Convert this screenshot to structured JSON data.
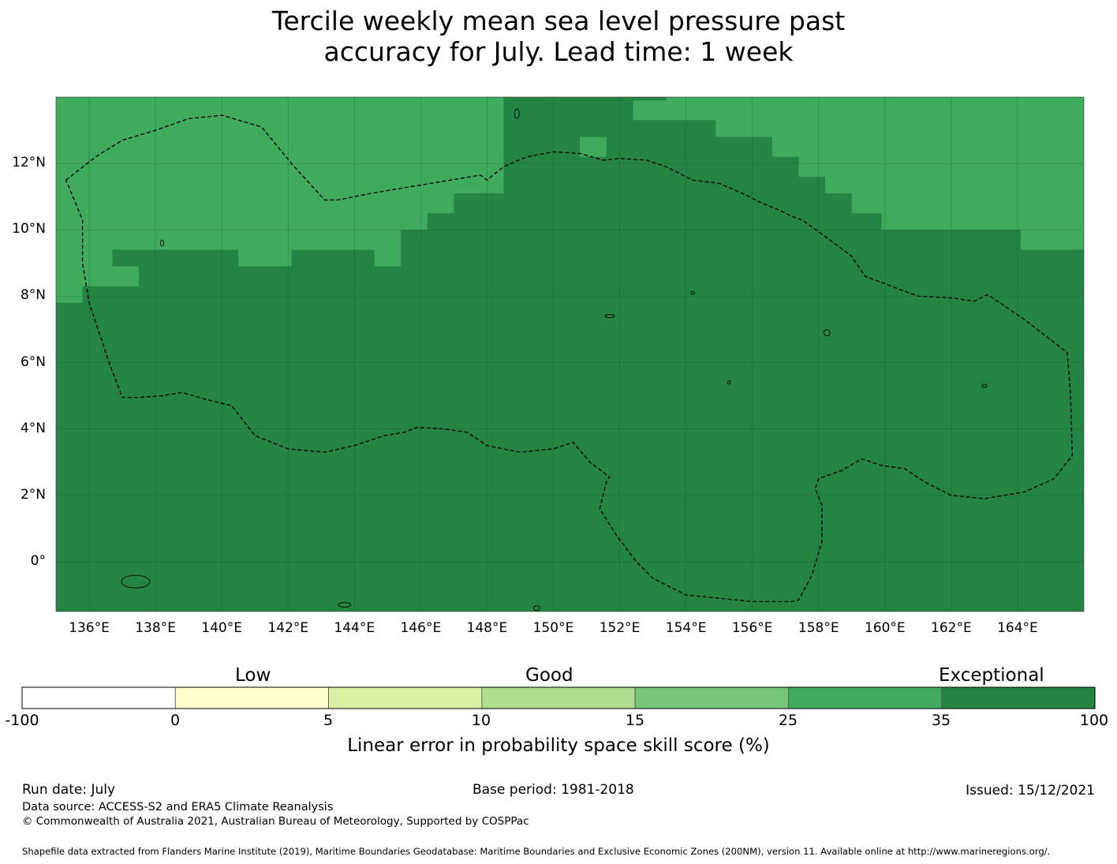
{
  "title_line1": "Tercile weekly mean sea level pressure past",
  "title_line2": "accuracy for July. Lead time: 1 week",
  "map": {
    "extent": {
      "lon_min": 135.0,
      "lon_max": 166.0,
      "lat_min": -1.5,
      "lat_max": 14.0
    },
    "lon_labels": [
      "136°E",
      "138°E",
      "140°E",
      "142°E",
      "144°E",
      "146°E",
      "148°E",
      "150°E",
      "152°E",
      "154°E",
      "156°E",
      "158°E",
      "160°E",
      "162°E",
      "164°E"
    ],
    "lat_labels": [
      "12°N",
      "10°N",
      "8°N",
      "6°N",
      "4°N",
      "2°N",
      "0°"
    ],
    "colors": {
      "score_25_35": "#41ab5d",
      "score_35_100": "#238443",
      "grid": "#1e5a32"
    },
    "category_25_35_regions_lon_lat": [
      [
        [
          135.0,
          14.0
        ],
        [
          148.5,
          14.0
        ],
        [
          148.5,
          11.1
        ],
        [
          147.0,
          11.1
        ],
        [
          147.0,
          10.5
        ],
        [
          146.2,
          10.5
        ],
        [
          146.2,
          10.0
        ],
        [
          145.4,
          10.0
        ],
        [
          145.4,
          8.9
        ],
        [
          144.6,
          8.9
        ],
        [
          144.6,
          9.4
        ],
        [
          142.1,
          9.4
        ],
        [
          142.1,
          8.9
        ],
        [
          140.5,
          8.9
        ],
        [
          140.5,
          9.4
        ],
        [
          136.7,
          9.4
        ],
        [
          136.7,
          8.9
        ],
        [
          137.5,
          8.9
        ],
        [
          137.5,
          8.3
        ],
        [
          135.8,
          8.3
        ],
        [
          135.8,
          7.8
        ],
        [
          135.0,
          7.8
        ]
      ],
      [
        [
          152.4,
          14.0
        ],
        [
          166.0,
          14.0
        ],
        [
          166.0,
          9.4
        ],
        [
          164.1,
          9.4
        ],
        [
          164.1,
          10.0
        ],
        [
          159.9,
          10.0
        ],
        [
          159.9,
          10.5
        ],
        [
          159.0,
          10.5
        ],
        [
          159.0,
          11.1
        ],
        [
          158.2,
          11.1
        ],
        [
          158.2,
          11.6
        ],
        [
          157.4,
          11.6
        ],
        [
          157.4,
          12.2
        ],
        [
          156.6,
          12.2
        ],
        [
          156.6,
          12.8
        ],
        [
          154.9,
          12.8
        ],
        [
          154.9,
          13.3
        ],
        [
          152.4,
          13.3
        ]
      ]
    ],
    "category_35_100_patch_lon_lat": [
      [
        148.5,
        14.0
      ],
      [
        153.4,
        14.0
      ],
      [
        153.4,
        13.9
      ],
      [
        148.5,
        13.9
      ]
    ],
    "category_25_35_small_patch_lon_lat": [
      [
        150.8,
        12.8
      ],
      [
        151.6,
        12.8
      ],
      [
        151.6,
        12.2
      ],
      [
        150.8,
        12.2
      ]
    ],
    "eez_boundary_lon_lat": [
      [
        135.3,
        11.5
      ],
      [
        136.2,
        12.2
      ],
      [
        137.0,
        12.7
      ],
      [
        138.0,
        13.0
      ],
      [
        139.0,
        13.35
      ],
      [
        140.0,
        13.45
      ],
      [
        141.2,
        13.1
      ],
      [
        142.1,
        12.0
      ],
      [
        143.1,
        10.9
      ],
      [
        143.5,
        10.9
      ],
      [
        144.5,
        11.1
      ],
      [
        146.0,
        11.35
      ],
      [
        147.2,
        11.55
      ],
      [
        147.8,
        11.65
      ],
      [
        148.0,
        11.5
      ],
      [
        148.5,
        11.9
      ],
      [
        149.2,
        12.2
      ],
      [
        150.0,
        12.35
      ],
      [
        150.8,
        12.3
      ],
      [
        151.5,
        12.1
      ],
      [
        152.0,
        12.15
      ],
      [
        152.8,
        12.1
      ],
      [
        153.4,
        11.9
      ],
      [
        154.2,
        11.5
      ],
      [
        155.0,
        11.4
      ],
      [
        155.7,
        11.1
      ],
      [
        156.3,
        10.8
      ],
      [
        156.8,
        10.6
      ],
      [
        157.2,
        10.4
      ],
      [
        157.5,
        10.3
      ],
      [
        158.2,
        9.8
      ],
      [
        159.0,
        9.2
      ],
      [
        159.4,
        8.6
      ],
      [
        160.2,
        8.3
      ],
      [
        161.0,
        8.0
      ],
      [
        162.0,
        7.95
      ],
      [
        162.7,
        7.85
      ],
      [
        163.1,
        8.05
      ],
      [
        164.2,
        7.3
      ],
      [
        165.5,
        6.3
      ],
      [
        165.6,
        5.0
      ],
      [
        165.65,
        3.2
      ],
      [
        165.1,
        2.5
      ],
      [
        164.2,
        2.1
      ],
      [
        163.0,
        1.9
      ],
      [
        162.0,
        2.0
      ],
      [
        161.2,
        2.4
      ],
      [
        160.6,
        2.8
      ],
      [
        159.9,
        2.9
      ],
      [
        159.3,
        3.1
      ],
      [
        158.7,
        2.75
      ],
      [
        158.0,
        2.5
      ],
      [
        157.9,
        2.2
      ],
      [
        158.1,
        1.7
      ],
      [
        158.1,
        0.6
      ],
      [
        157.8,
        -0.4
      ],
      [
        157.4,
        -1.15
      ],
      [
        157.2,
        -1.2
      ],
      [
        156.0,
        -1.2
      ],
      [
        154.0,
        -1.0
      ],
      [
        153.0,
        -0.5
      ],
      [
        152.5,
        0.0
      ],
      [
        151.9,
        0.8
      ],
      [
        151.4,
        1.6
      ],
      [
        151.6,
        2.4
      ],
      [
        151.7,
        2.55
      ],
      [
        151.1,
        3.0
      ],
      [
        150.6,
        3.6
      ],
      [
        150.0,
        3.4
      ],
      [
        149.0,
        3.3
      ],
      [
        148.0,
        3.5
      ],
      [
        147.4,
        3.9
      ],
      [
        146.7,
        4.0
      ],
      [
        145.9,
        4.05
      ],
      [
        145.5,
        3.9
      ],
      [
        144.9,
        3.8
      ],
      [
        144.0,
        3.5
      ],
      [
        143.1,
        3.3
      ],
      [
        142.0,
        3.4
      ],
      [
        141.0,
        3.8
      ],
      [
        140.3,
        4.7
      ],
      [
        139.5,
        4.9
      ],
      [
        138.8,
        5.1
      ],
      [
        138.2,
        5.0
      ],
      [
        137.5,
        4.95
      ],
      [
        137.0,
        4.95
      ],
      [
        136.6,
        6.0
      ],
      [
        136.0,
        7.8
      ],
      [
        135.8,
        9.0
      ],
      [
        135.8,
        10.3
      ],
      [
        135.3,
        11.5
      ]
    ]
  },
  "colorbar": {
    "categories": [
      "Low",
      "Good",
      "Exceptional"
    ],
    "bins": [
      {
        "from": -100,
        "to": 0,
        "color": "#ffffff"
      },
      {
        "from": 0,
        "to": 5,
        "color": "#ffffcc"
      },
      {
        "from": 5,
        "to": 10,
        "color": "#d9f0a3"
      },
      {
        "from": 10,
        "to": 15,
        "color": "#addd8e"
      },
      {
        "from": 15,
        "to": 25,
        "color": "#78c679"
      },
      {
        "from": 25,
        "to": 35,
        "color": "#41ab5d"
      },
      {
        "from": 35,
        "to": 100,
        "color": "#238443"
      }
    ],
    "tick_labels": [
      "-100",
      "0",
      "5",
      "10",
      "15",
      "25",
      "35",
      "100"
    ],
    "label": "Linear error in probability space skill score (%)"
  },
  "footer": {
    "run_date": "Run date: July",
    "base_period": "Base period: 1981-2018",
    "issued": "Issued: 15/12/2021",
    "data_source": "Data source: ACCESS-S2 and ERA5 Climate Reanalysis",
    "copyright": "© Commonwealth of Australia 2021, Australian Bureau of Meteorology, Supported by COSPPac",
    "shapefile": "Shapefile data extracted from Flanders Marine Institute (2019), Maritime Boundaries Geodatabase: Maritime Boundaries and Exclusive Economic Zones (200NM), version 11. Available online at http://www.marineregions.org/."
  }
}
